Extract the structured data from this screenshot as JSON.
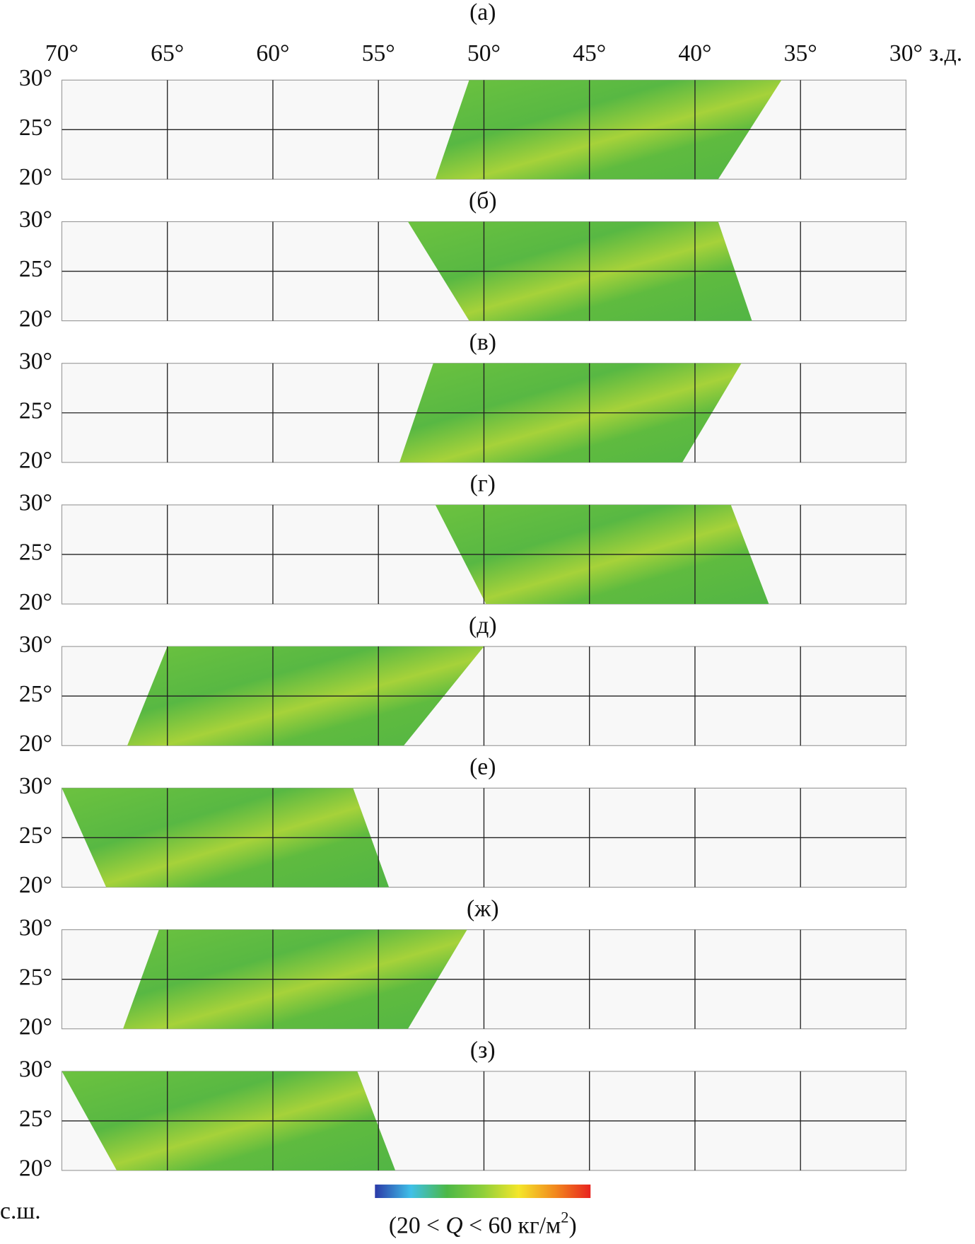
{
  "chart_data": {
    "type": "swath-maps",
    "xlim": [
      70,
      30
    ],
    "ylim": [
      20,
      30
    ],
    "xticks": [
      {
        "value": 70,
        "label": "70°"
      },
      {
        "value": 65,
        "label": "65°"
      },
      {
        "value": 60,
        "label": "60°"
      },
      {
        "value": 55,
        "label": "55°"
      },
      {
        "value": 50,
        "label": "50°"
      },
      {
        "value": 45,
        "label": "45°"
      },
      {
        "value": 40,
        "label": "40°"
      },
      {
        "value": 35,
        "label": "35°"
      },
      {
        "value": 30,
        "label": "30°"
      }
    ],
    "x_unit": "з.д.",
    "yticks": [
      {
        "value": 30,
        "label": "30°"
      },
      {
        "value": 25,
        "label": "25°"
      },
      {
        "value": 20,
        "label": "20°"
      }
    ],
    "y_unit": "с.ш.",
    "panels": [
      {
        "label": "(а)",
        "swath": [
          [
            50.7,
            30
          ],
          [
            35.9,
            30
          ],
          [
            38.9,
            20
          ],
          [
            52.3,
            20
          ]
        ]
      },
      {
        "label": "(б)",
        "swath": [
          [
            53.6,
            30
          ],
          [
            38.9,
            30
          ],
          [
            37.3,
            20
          ],
          [
            50.7,
            20
          ]
        ]
      },
      {
        "label": "(в)",
        "swath": [
          [
            52.4,
            30
          ],
          [
            37.8,
            30
          ],
          [
            40.6,
            20
          ],
          [
            54.0,
            20
          ]
        ]
      },
      {
        "label": "(г)",
        "swath": [
          [
            52.3,
            30
          ],
          [
            38.3,
            30
          ],
          [
            36.5,
            20
          ],
          [
            49.9,
            20
          ]
        ]
      },
      {
        "label": "(д)",
        "swath": [
          [
            65.0,
            30
          ],
          [
            50.0,
            30
          ],
          [
            53.8,
            20
          ],
          [
            66.9,
            20
          ]
        ]
      },
      {
        "label": "(е)",
        "swath": [
          [
            70.0,
            30
          ],
          [
            56.2,
            30
          ],
          [
            54.5,
            20
          ],
          [
            67.9,
            20
          ]
        ]
      },
      {
        "label": "(ж)",
        "swath": [
          [
            65.4,
            30
          ],
          [
            50.8,
            30
          ],
          [
            53.6,
            20
          ],
          [
            67.1,
            20
          ]
        ]
      },
      {
        "label": "(з)",
        "swath": [
          [
            70.0,
            30
          ],
          [
            56.0,
            30
          ],
          [
            54.2,
            20
          ],
          [
            67.4,
            20
          ]
        ]
      }
    ],
    "colorbar": {
      "colors": [
        "#2b3aa8",
        "#3fc0e8",
        "#4cb847",
        "#8fcf3a",
        "#f4e62a",
        "#f28a1e",
        "#e8231f"
      ],
      "label": [
        "(20 < ",
        "Q",
        " < 60 кг/м",
        "2",
        ")"
      ]
    }
  }
}
